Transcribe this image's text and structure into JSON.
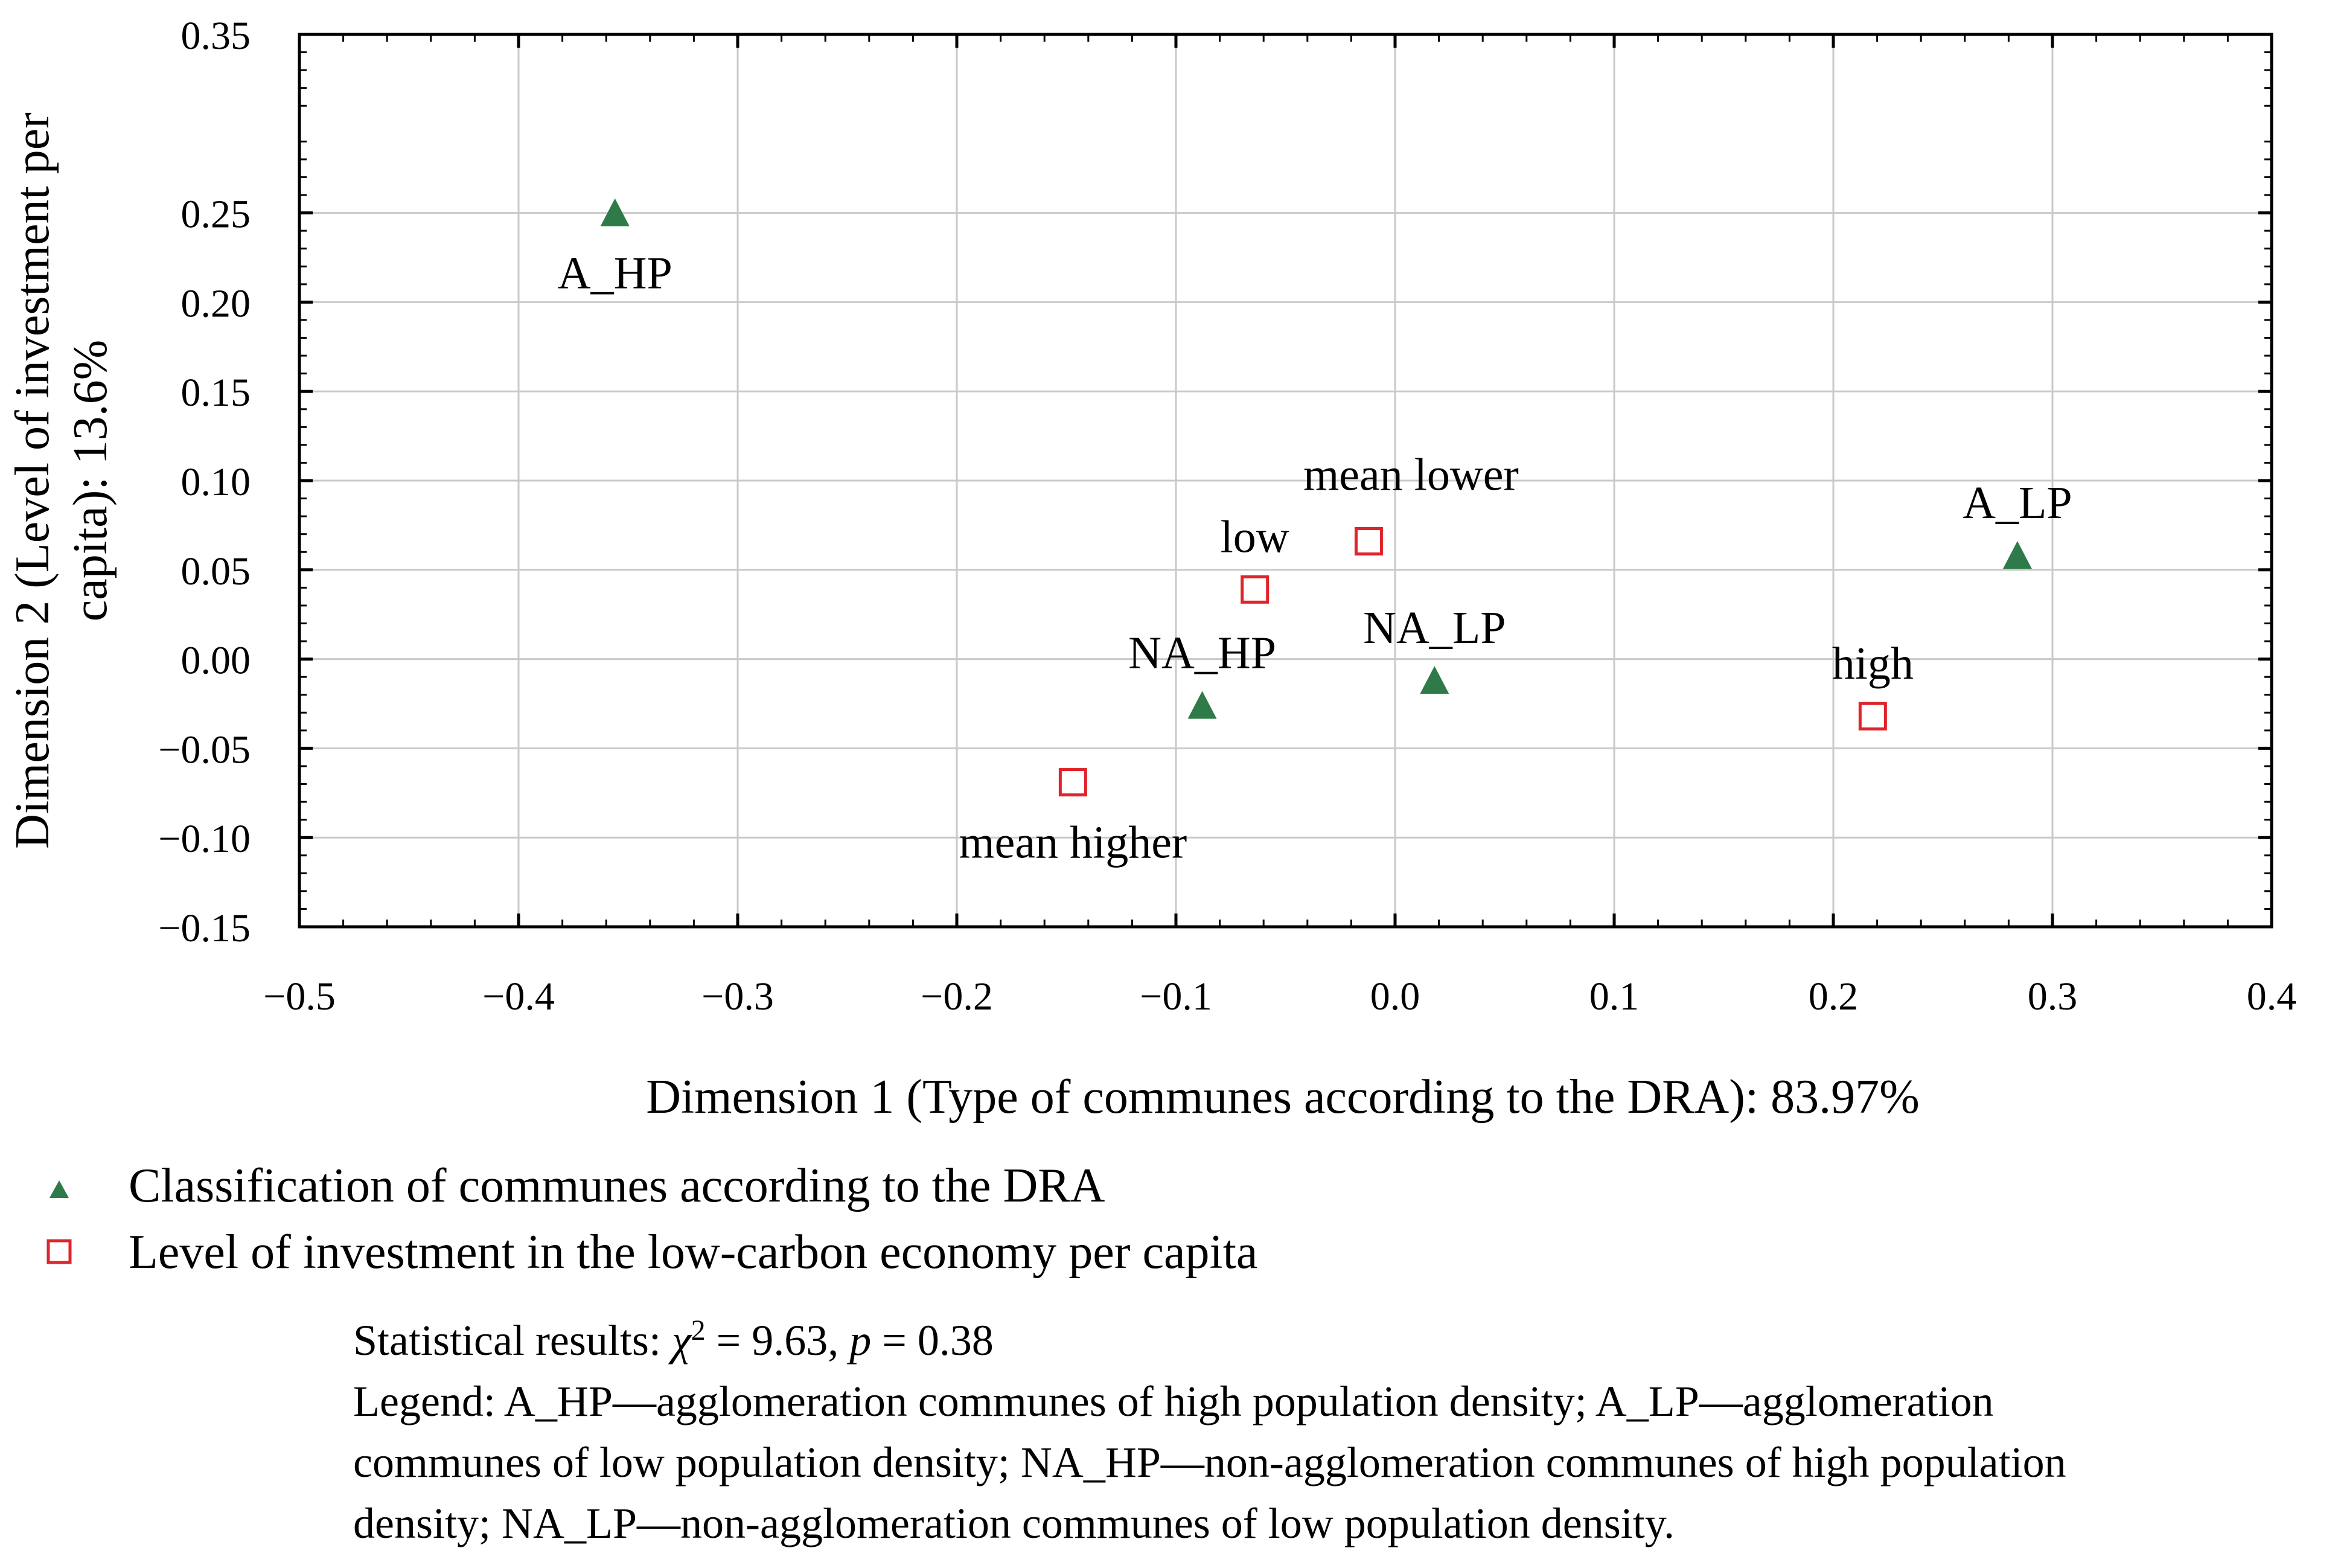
{
  "chart_data": {
    "type": "scatter",
    "title": "",
    "xlabel": "Dimension 1 (Type of communes according to the DRA): 83.97%",
    "ylabel_lines": [
      "Dimension 2 (Level of investment per",
      "capita): 13.6%"
    ],
    "xlim": [
      -0.5,
      0.4
    ],
    "ylim": [
      -0.15,
      0.35
    ],
    "x_ticks": [
      -0.5,
      -0.4,
      -0.3,
      -0.2,
      -0.1,
      0.0,
      0.1,
      0.2,
      0.3,
      0.4
    ],
    "x_tick_labels": [
      "−0.5",
      "−0.4",
      "−0.3",
      "−0.2",
      "−0.1",
      "0.0",
      "0.1",
      "0.2",
      "0.3",
      "0.4"
    ],
    "y_ticks": [
      0.35,
      0.25,
      0.2,
      0.15,
      0.1,
      0.05,
      0.0,
      -0.05,
      -0.1,
      -0.15
    ],
    "y_tick_labels": [
      "0.35",
      "0.25",
      "0.20",
      "0.15",
      "0.10",
      "0.05",
      "0.00",
      "−0.05",
      "−0.10",
      "−0.15"
    ],
    "grid": true,
    "legend_position": "bottom-left",
    "series": [
      {
        "name": "Classification of communes according to the DRA",
        "marker": "triangle",
        "color": "#2e7a48",
        "points": [
          {
            "label": "A_HP",
            "x": -0.356,
            "y": 0.25,
            "label_pos": "below"
          },
          {
            "label": "A_LP",
            "x": 0.284,
            "y": 0.058,
            "label_pos": "above"
          },
          {
            "label": "NA_HP",
            "x": -0.088,
            "y": -0.026,
            "label_pos": "above"
          },
          {
            "label": "NA_LP",
            "x": 0.018,
            "y": -0.012,
            "label_pos": "above"
          }
        ]
      },
      {
        "name": "Level of investment in the low-carbon economy per capita",
        "marker": "square",
        "color": "#e0242b",
        "points": [
          {
            "label": "mean lower",
            "x": -0.012,
            "y": 0.066,
            "label_pos": "above-right"
          },
          {
            "label": "low",
            "x": -0.064,
            "y": 0.039,
            "label_pos": "above"
          },
          {
            "label": "high",
            "x": 0.218,
            "y": -0.032,
            "label_pos": "above"
          },
          {
            "label": "mean higher",
            "x": -0.147,
            "y": -0.069,
            "label_pos": "below"
          }
        ]
      }
    ]
  },
  "notes": {
    "stat_prefix": "Statistical results: ",
    "stat_chi": "χ",
    "stat_exp": "2",
    "stat_mid": " = 9.63, ",
    "stat_p": "p",
    "stat_end": " = 0.38",
    "legend_line_1": "Legend: A_HP—agglomeration communes of high population density; A_LP—agglomeration",
    "legend_line_2": "communes of low population density; NA_HP—non-agglomeration communes of high population",
    "legend_line_3": "density; NA_LP—non-agglomeration communes of low population density."
  }
}
